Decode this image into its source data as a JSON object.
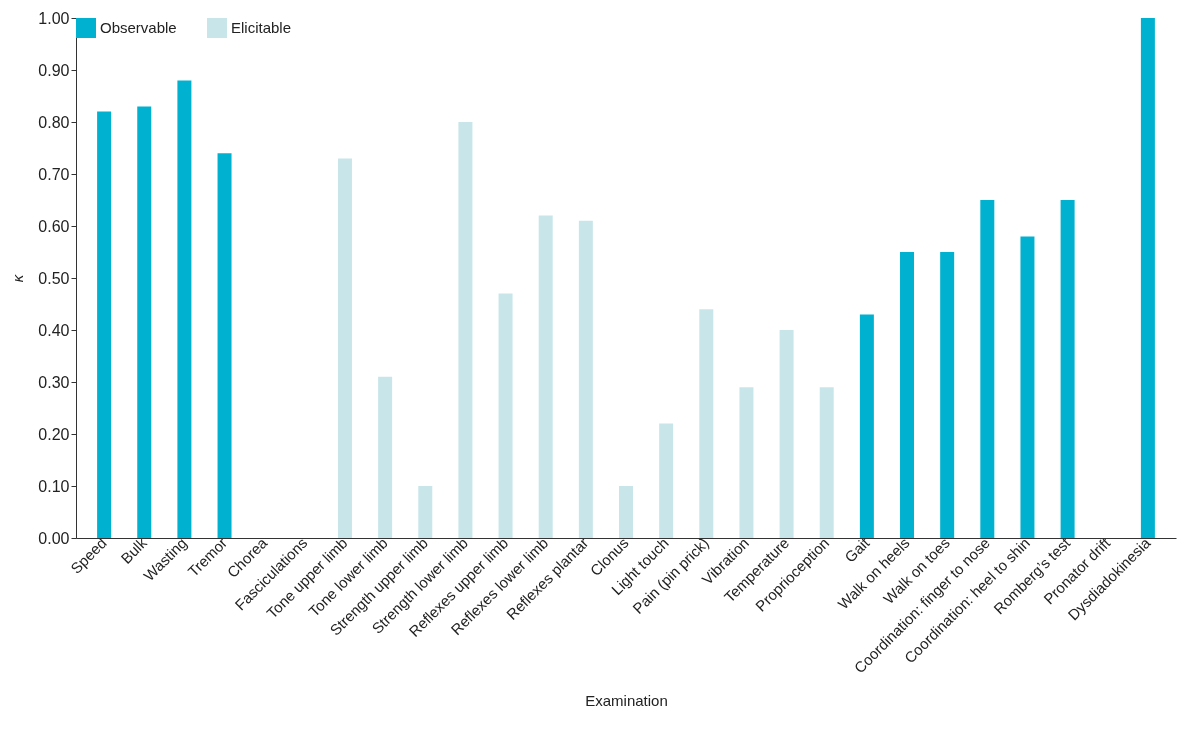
{
  "chart_data": {
    "type": "bar",
    "xlabel": "Examination",
    "ylabel": "κ",
    "categories": [
      "Speed",
      "Bulk",
      "Wasting",
      "Tremor",
      "Chorea",
      "Fasciculations",
      "Tone upper limb",
      "Tone lower limb",
      "Strength upper limb",
      "Strength lower limb",
      "Reflexes upper limb",
      "Reflexes lower limb",
      "Reflexes plantar",
      "Clonus",
      "Light touch",
      "Pain (pin prick)",
      "Vibration",
      "Temperature",
      "Proprioception",
      "Gait",
      "Walk on heels",
      "Walk on toes",
      "Coordination: finger to nose",
      "Coordination: heel to shin",
      "Romberg’s test",
      "Pronator drift",
      "Dysdiadokinesia"
    ],
    "series": [
      {
        "name": "Observable",
        "color": "#00b2d0",
        "values": [
          0.82,
          0.83,
          0.88,
          0.74,
          null,
          null,
          null,
          null,
          null,
          null,
          null,
          null,
          null,
          null,
          null,
          null,
          null,
          null,
          null,
          0.43,
          0.55,
          0.55,
          0.65,
          0.58,
          0.65,
          null,
          1.0
        ]
      },
      {
        "name": "Elicitable",
        "color": "#c8e6ea",
        "values": [
          null,
          null,
          null,
          null,
          null,
          null,
          0.73,
          0.31,
          0.1,
          0.8,
          0.47,
          0.62,
          0.61,
          0.1,
          0.22,
          0.44,
          0.29,
          0.4,
          0.29,
          null,
          null,
          null,
          null,
          null,
          null,
          null,
          null
        ]
      }
    ],
    "ylim": [
      0,
      1
    ],
    "yticks": [
      {
        "value": 0,
        "label": "0.00"
      },
      {
        "value": 0.1,
        "label": "0.10"
      },
      {
        "value": 0.2,
        "label": "0.20"
      },
      {
        "value": 0.3,
        "label": "0.30"
      },
      {
        "value": 0.4,
        "label": "0.40"
      },
      {
        "value": 0.5,
        "label": "0.50"
      },
      {
        "value": 0.6,
        "label": "0.60"
      },
      {
        "value": 0.7,
        "label": "0.70"
      },
      {
        "value": 0.8,
        "label": "0.80"
      },
      {
        "value": 0.9,
        "label": "0.90"
      },
      {
        "value": 1,
        "label": "1.00"
      }
    ],
    "grid": false,
    "legend": "top"
  }
}
